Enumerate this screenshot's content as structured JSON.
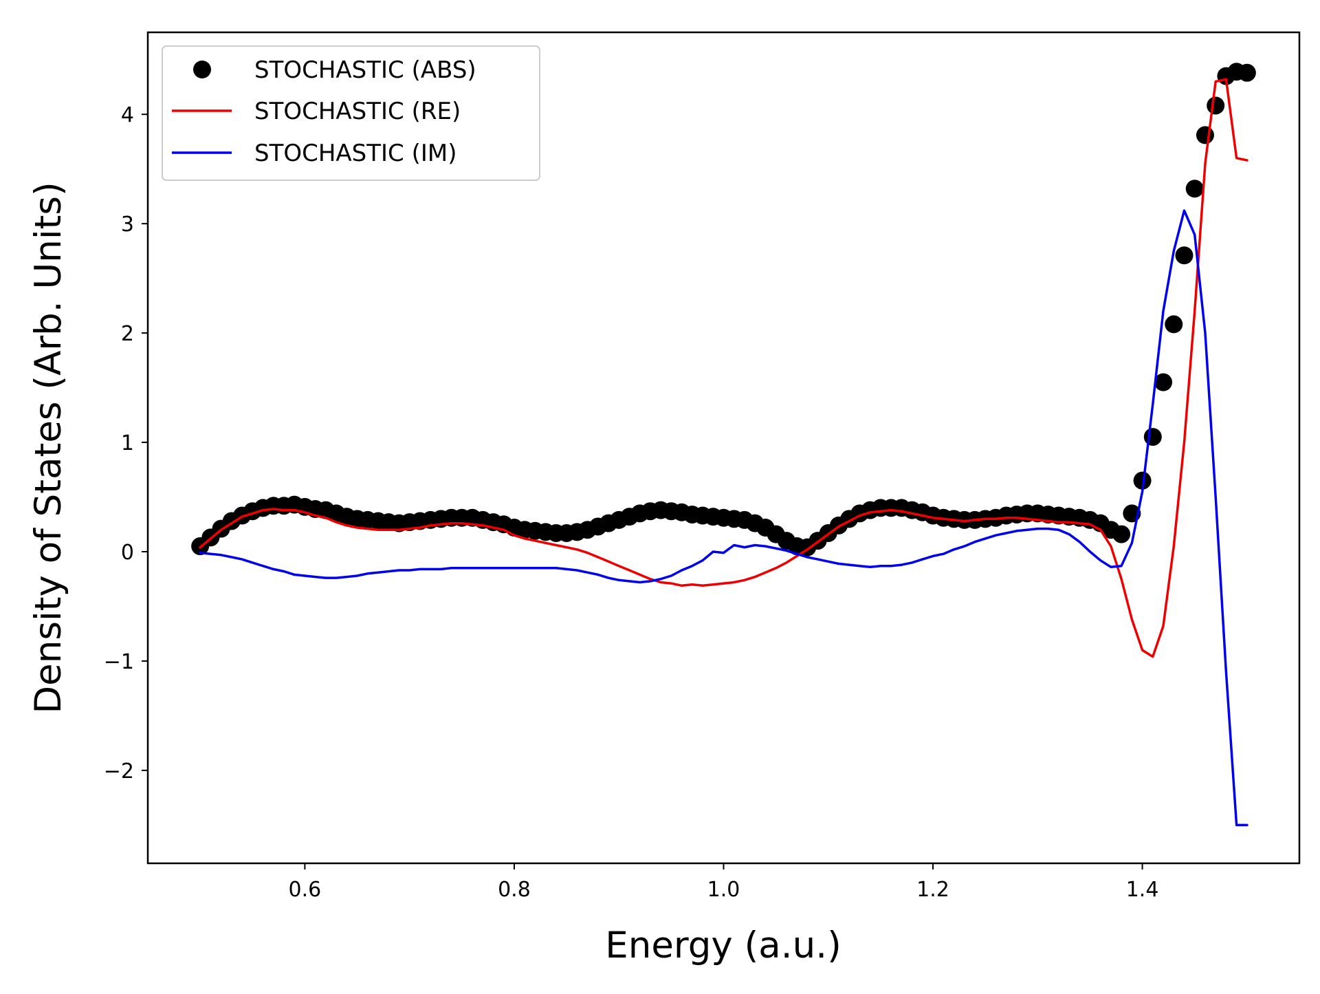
{
  "chart_data": {
    "type": "line",
    "title": "",
    "xlabel": "Energy (a.u.)",
    "ylabel": "Density of States (Arb. Units)",
    "xlim": [
      0.45,
      1.55
    ],
    "ylim": [
      -2.85,
      4.75
    ],
    "xticks": [
      0.6,
      0.8,
      1.0,
      1.2,
      1.4
    ],
    "xtick_labels": [
      "0.6",
      "0.8",
      "1.0",
      "1.2",
      "1.4"
    ],
    "yticks": [
      -2,
      -1,
      0,
      1,
      2,
      3,
      4
    ],
    "ytick_labels": [
      "−2",
      "−1",
      "0",
      "1",
      "2",
      "3",
      "4"
    ],
    "grid": false,
    "legend_position": "top-left",
    "series": [
      {
        "name": "STOCHASTIC (ABS)",
        "style": "markers",
        "color": "#000000",
        "x": [
          0.5,
          0.51,
          0.52,
          0.53,
          0.54,
          0.55,
          0.56,
          0.57,
          0.58,
          0.59,
          0.6,
          0.61,
          0.62,
          0.63,
          0.64,
          0.65,
          0.66,
          0.67,
          0.68,
          0.69,
          0.7,
          0.71,
          0.72,
          0.73,
          0.74,
          0.75,
          0.76,
          0.77,
          0.78,
          0.79,
          0.8,
          0.81,
          0.82,
          0.83,
          0.84,
          0.85,
          0.86,
          0.87,
          0.88,
          0.89,
          0.9,
          0.91,
          0.92,
          0.93,
          0.94,
          0.95,
          0.96,
          0.97,
          0.98,
          0.99,
          1.0,
          1.01,
          1.02,
          1.03,
          1.04,
          1.05,
          1.06,
          1.07,
          1.08,
          1.09,
          1.1,
          1.11,
          1.12,
          1.13,
          1.14,
          1.15,
          1.16,
          1.17,
          1.18,
          1.19,
          1.2,
          1.21,
          1.22,
          1.23,
          1.24,
          1.25,
          1.26,
          1.27,
          1.28,
          1.29,
          1.3,
          1.31,
          1.32,
          1.33,
          1.34,
          1.35,
          1.36,
          1.37,
          1.38,
          1.39,
          1.4,
          1.41,
          1.42,
          1.43,
          1.44,
          1.45,
          1.46,
          1.47,
          1.48,
          1.49,
          1.5
        ],
        "y": [
          0.05,
          0.13,
          0.21,
          0.28,
          0.33,
          0.37,
          0.4,
          0.42,
          0.42,
          0.43,
          0.41,
          0.39,
          0.38,
          0.35,
          0.32,
          0.3,
          0.29,
          0.28,
          0.27,
          0.26,
          0.27,
          0.28,
          0.29,
          0.3,
          0.31,
          0.31,
          0.31,
          0.29,
          0.27,
          0.25,
          0.22,
          0.2,
          0.19,
          0.18,
          0.17,
          0.17,
          0.18,
          0.2,
          0.23,
          0.26,
          0.29,
          0.32,
          0.35,
          0.37,
          0.38,
          0.37,
          0.36,
          0.34,
          0.33,
          0.32,
          0.31,
          0.3,
          0.29,
          0.26,
          0.22,
          0.16,
          0.1,
          0.05,
          0.04,
          0.1,
          0.17,
          0.24,
          0.3,
          0.35,
          0.38,
          0.4,
          0.4,
          0.4,
          0.38,
          0.36,
          0.33,
          0.31,
          0.3,
          0.29,
          0.29,
          0.3,
          0.31,
          0.33,
          0.34,
          0.35,
          0.35,
          0.34,
          0.33,
          0.32,
          0.31,
          0.29,
          0.26,
          0.2,
          0.16,
          0.35,
          0.65,
          1.05,
          1.55,
          2.08,
          2.71,
          3.32,
          3.81,
          4.08,
          4.35,
          4.39,
          4.38
        ]
      },
      {
        "name": "STOCHASTIC (RE)",
        "style": "line",
        "color": "#ee0000",
        "x": [
          0.5,
          0.51,
          0.52,
          0.53,
          0.54,
          0.55,
          0.56,
          0.57,
          0.58,
          0.59,
          0.6,
          0.61,
          0.62,
          0.63,
          0.64,
          0.65,
          0.66,
          0.67,
          0.68,
          0.69,
          0.7,
          0.71,
          0.72,
          0.73,
          0.74,
          0.75,
          0.76,
          0.77,
          0.78,
          0.79,
          0.8,
          0.81,
          0.82,
          0.83,
          0.84,
          0.85,
          0.86,
          0.87,
          0.88,
          0.89,
          0.9,
          0.91,
          0.92,
          0.93,
          0.94,
          0.95,
          0.96,
          0.97,
          0.98,
          0.99,
          1.0,
          1.01,
          1.02,
          1.03,
          1.04,
          1.05,
          1.06,
          1.07,
          1.08,
          1.09,
          1.1,
          1.11,
          1.12,
          1.13,
          1.14,
          1.15,
          1.16,
          1.17,
          1.18,
          1.19,
          1.2,
          1.21,
          1.22,
          1.23,
          1.24,
          1.25,
          1.26,
          1.27,
          1.28,
          1.29,
          1.3,
          1.31,
          1.32,
          1.33,
          1.34,
          1.35,
          1.36,
          1.37,
          1.38,
          1.39,
          1.4,
          1.41,
          1.42,
          1.43,
          1.44,
          1.45,
          1.46,
          1.47,
          1.48,
          1.49,
          1.5
        ],
        "y": [
          0.04,
          0.12,
          0.2,
          0.26,
          0.32,
          0.35,
          0.38,
          0.39,
          0.38,
          0.38,
          0.36,
          0.33,
          0.31,
          0.27,
          0.24,
          0.22,
          0.21,
          0.2,
          0.2,
          0.2,
          0.21,
          0.22,
          0.24,
          0.25,
          0.26,
          0.26,
          0.25,
          0.24,
          0.22,
          0.2,
          0.15,
          0.12,
          0.1,
          0.08,
          0.06,
          0.04,
          0.02,
          -0.01,
          -0.05,
          -0.09,
          -0.13,
          -0.17,
          -0.21,
          -0.25,
          -0.28,
          -0.29,
          -0.31,
          -0.3,
          -0.31,
          -0.3,
          -0.29,
          -0.28,
          -0.26,
          -0.23,
          -0.19,
          -0.15,
          -0.1,
          -0.04,
          0.02,
          0.09,
          0.16,
          0.23,
          0.28,
          0.33,
          0.36,
          0.37,
          0.38,
          0.37,
          0.35,
          0.33,
          0.31,
          0.3,
          0.29,
          0.28,
          0.29,
          0.3,
          0.3,
          0.31,
          0.31,
          0.3,
          0.29,
          0.28,
          0.27,
          0.27,
          0.26,
          0.25,
          0.2,
          0.05,
          -0.25,
          -0.62,
          -0.9,
          -0.96,
          -0.68,
          0.05,
          1.0,
          2.2,
          3.55,
          4.3,
          4.32,
          3.6,
          3.58
        ]
      },
      {
        "name": "STOCHASTIC (IM)",
        "style": "line",
        "color": "#0000ee",
        "x": [
          0.5,
          0.51,
          0.52,
          0.53,
          0.54,
          0.55,
          0.56,
          0.57,
          0.58,
          0.59,
          0.6,
          0.61,
          0.62,
          0.63,
          0.64,
          0.65,
          0.66,
          0.67,
          0.68,
          0.69,
          0.7,
          0.71,
          0.72,
          0.73,
          0.74,
          0.75,
          0.76,
          0.77,
          0.78,
          0.79,
          0.8,
          0.81,
          0.82,
          0.83,
          0.84,
          0.85,
          0.86,
          0.87,
          0.88,
          0.89,
          0.9,
          0.91,
          0.92,
          0.93,
          0.94,
          0.95,
          0.96,
          0.97,
          0.98,
          0.99,
          1.0,
          1.01,
          1.02,
          1.03,
          1.04,
          1.05,
          1.06,
          1.07,
          1.08,
          1.09,
          1.1,
          1.11,
          1.12,
          1.13,
          1.14,
          1.15,
          1.16,
          1.17,
          1.18,
          1.19,
          1.2,
          1.21,
          1.22,
          1.23,
          1.24,
          1.25,
          1.26,
          1.27,
          1.28,
          1.29,
          1.3,
          1.31,
          1.32,
          1.33,
          1.34,
          1.35,
          1.36,
          1.37,
          1.38,
          1.39,
          1.4,
          1.41,
          1.42,
          1.43,
          1.44,
          1.45,
          1.46,
          1.47,
          1.48,
          1.49,
          1.5
        ],
        "y": [
          -0.01,
          -0.02,
          -0.03,
          -0.05,
          -0.07,
          -0.1,
          -0.13,
          -0.16,
          -0.18,
          -0.21,
          -0.22,
          -0.23,
          -0.24,
          -0.24,
          -0.23,
          -0.22,
          -0.2,
          -0.19,
          -0.18,
          -0.17,
          -0.17,
          -0.16,
          -0.16,
          -0.16,
          -0.15,
          -0.15,
          -0.15,
          -0.15,
          -0.15,
          -0.15,
          -0.15,
          -0.15,
          -0.15,
          -0.15,
          -0.15,
          -0.16,
          -0.17,
          -0.19,
          -0.21,
          -0.24,
          -0.26,
          -0.27,
          -0.28,
          -0.27,
          -0.25,
          -0.22,
          -0.17,
          -0.13,
          -0.08,
          0.0,
          -0.01,
          0.06,
          0.04,
          0.06,
          0.05,
          0.03,
          0.01,
          -0.02,
          -0.05,
          -0.07,
          -0.09,
          -0.11,
          -0.12,
          -0.13,
          -0.14,
          -0.13,
          -0.13,
          -0.12,
          -0.1,
          -0.07,
          -0.04,
          -0.02,
          0.02,
          0.05,
          0.09,
          0.12,
          0.15,
          0.17,
          0.19,
          0.2,
          0.21,
          0.21,
          0.2,
          0.16,
          0.09,
          0.0,
          -0.08,
          -0.14,
          -0.13,
          0.08,
          0.55,
          1.35,
          2.2,
          2.75,
          3.12,
          2.9,
          2.0,
          0.5,
          -1.1,
          -2.5,
          -2.5
        ]
      }
    ]
  }
}
